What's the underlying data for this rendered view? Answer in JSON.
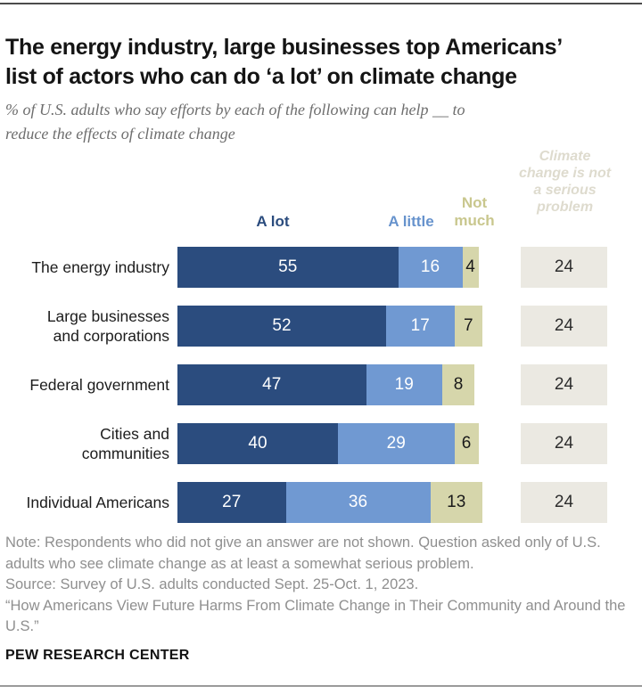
{
  "header": {
    "title": "The energy industry, large businesses top Americans’\nlist of actors who can do ‘a lot’ on climate change",
    "subtitle": "% of U.S. adults who say efforts by each of the following can help __ to\nreduce the effects of climate change"
  },
  "legend": {
    "a_lot": "A lot",
    "a_little": "A little",
    "not_much": "Not\nmuch",
    "not_serious": "Climate\nchange is not\na serious\nproblem"
  },
  "chart_data": {
    "type": "bar",
    "stacked": true,
    "orientation": "horizontal",
    "unit": "%",
    "xlim": [
      0,
      100
    ],
    "title": "The energy industry, large businesses top Americans’ list of actors who can do ‘a lot’ on climate change",
    "subtitle": "% of U.S. adults who say efforts by each of the following can help __ to reduce the effects of climate change",
    "categories": [
      "The energy industry",
      "Large businesses\nand corporations",
      "Federal government",
      "Cities and\ncommunities",
      "Individual Americans"
    ],
    "series": [
      {
        "name": "A lot",
        "color": "#2b4c7e",
        "text_color": "#ffffff",
        "values": [
          55,
          52,
          47,
          40,
          27
        ]
      },
      {
        "name": "A little",
        "color": "#7099d2",
        "text_color": "#ffffff",
        "values": [
          16,
          17,
          19,
          29,
          36
        ]
      },
      {
        "name": "Not much",
        "color": "#d6d6ab",
        "text_color": "#1a1a1a",
        "values": [
          4,
          7,
          8,
          6,
          13
        ]
      }
    ],
    "aside_column": {
      "name": "Climate change is not a serious problem",
      "color": "#ebe9e2",
      "text_color": "#2d2d2d",
      "values": [
        24,
        24,
        24,
        24,
        24
      ]
    },
    "legend_position": "top",
    "grid": false
  },
  "footer": {
    "note": "Note: Respondents who did not give an answer are not shown. Question asked only of U.S. adults who see climate change as at least a somewhat serious problem.",
    "source": "Source: Survey of U.S. adults conducted Sept. 25-Oct. 1, 2023.",
    "quote": "“How Americans View Future Harms From Climate Change in Their Community and Around the U.S.”",
    "brand": "PEW RESEARCH CENTER"
  }
}
